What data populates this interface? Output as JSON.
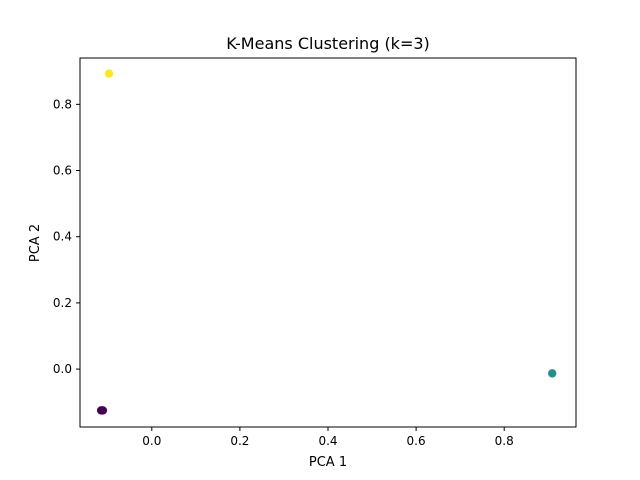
{
  "chart_data": {
    "type": "scatter",
    "title": "K-Means Clustering (k=3)",
    "xlabel": "PCA 1",
    "ylabel": "PCA 2",
    "xlim": [
      -0.163,
      0.963
    ],
    "ylim": [
      -0.175,
      0.94
    ],
    "xticks": [
      0.0,
      0.2,
      0.4,
      0.6,
      0.8
    ],
    "yticks": [
      0.0,
      0.2,
      0.4,
      0.6,
      0.8
    ],
    "grid": false,
    "legend": "none",
    "points": [
      {
        "x": -0.115,
        "y": -0.125,
        "cluster": 0,
        "color": "#440154"
      },
      {
        "x": -0.113,
        "y": -0.125,
        "cluster": 0,
        "color": "#440154"
      },
      {
        "x": -0.111,
        "y": -0.125,
        "cluster": 0,
        "color": "#440154"
      },
      {
        "x": 0.909,
        "y": -0.013,
        "cluster": 1,
        "color": "#21918c"
      },
      {
        "x": -0.097,
        "y": 0.893,
        "cluster": 2,
        "color": "#fde725"
      }
    ]
  }
}
